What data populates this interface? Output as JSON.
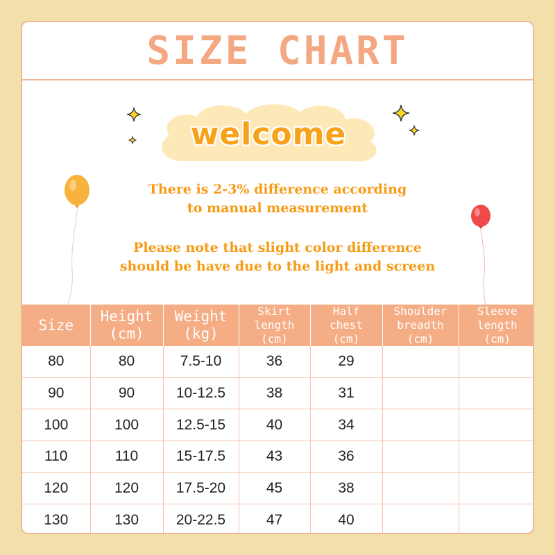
{
  "title": "SIZE CHART",
  "welcome": "welcome",
  "notes": {
    "line1": "There is 2-3% difference according",
    "line2": "to manual measurement",
    "line3": "Please note that slight color difference",
    "line4": "should be have due to the light and screen"
  },
  "colors": {
    "page_background": "#f3dfa9",
    "accent": "#f5ad85",
    "title_text": "#f3a882",
    "note_text": "#f79b14",
    "welcome_text": "#f7a21a",
    "cloud": "#fde8b8",
    "balloon_left": "#f8b23e",
    "balloon_right": "#ee4a4a"
  },
  "icons": [
    "sparkle-icon",
    "balloon-icon",
    "cloud-icon"
  ],
  "table": {
    "headers": [
      {
        "l1": "Size",
        "l2": "",
        "l3": ""
      },
      {
        "l1": "Height",
        "l2": "(cm)",
        "l3": ""
      },
      {
        "l1": "Weight",
        "l2": "(kg)",
        "l3": ""
      },
      {
        "l1": "Skirt",
        "l2": "length",
        "l3": "(cm)"
      },
      {
        "l1": "Half",
        "l2": "chest",
        "l3": "(cm)"
      },
      {
        "l1": "Shoulder",
        "l2": "breadth",
        "l3": "(cm)"
      },
      {
        "l1": "Sleeve",
        "l2": "length",
        "l3": "(cm)"
      }
    ],
    "rows": [
      [
        "80",
        "80",
        "7.5-10",
        "36",
        "29",
        "",
        ""
      ],
      [
        "90",
        "90",
        "10-12.5",
        "38",
        "31",
        "",
        ""
      ],
      [
        "100",
        "100",
        "12.5-15",
        "40",
        "34",
        "",
        ""
      ],
      [
        "110",
        "110",
        "15-17.5",
        "43",
        "36",
        "",
        ""
      ],
      [
        "120",
        "120",
        "17.5-20",
        "45",
        "38",
        "",
        ""
      ],
      [
        "130",
        "130",
        "20-22.5",
        "47",
        "40",
        "",
        ""
      ]
    ]
  }
}
